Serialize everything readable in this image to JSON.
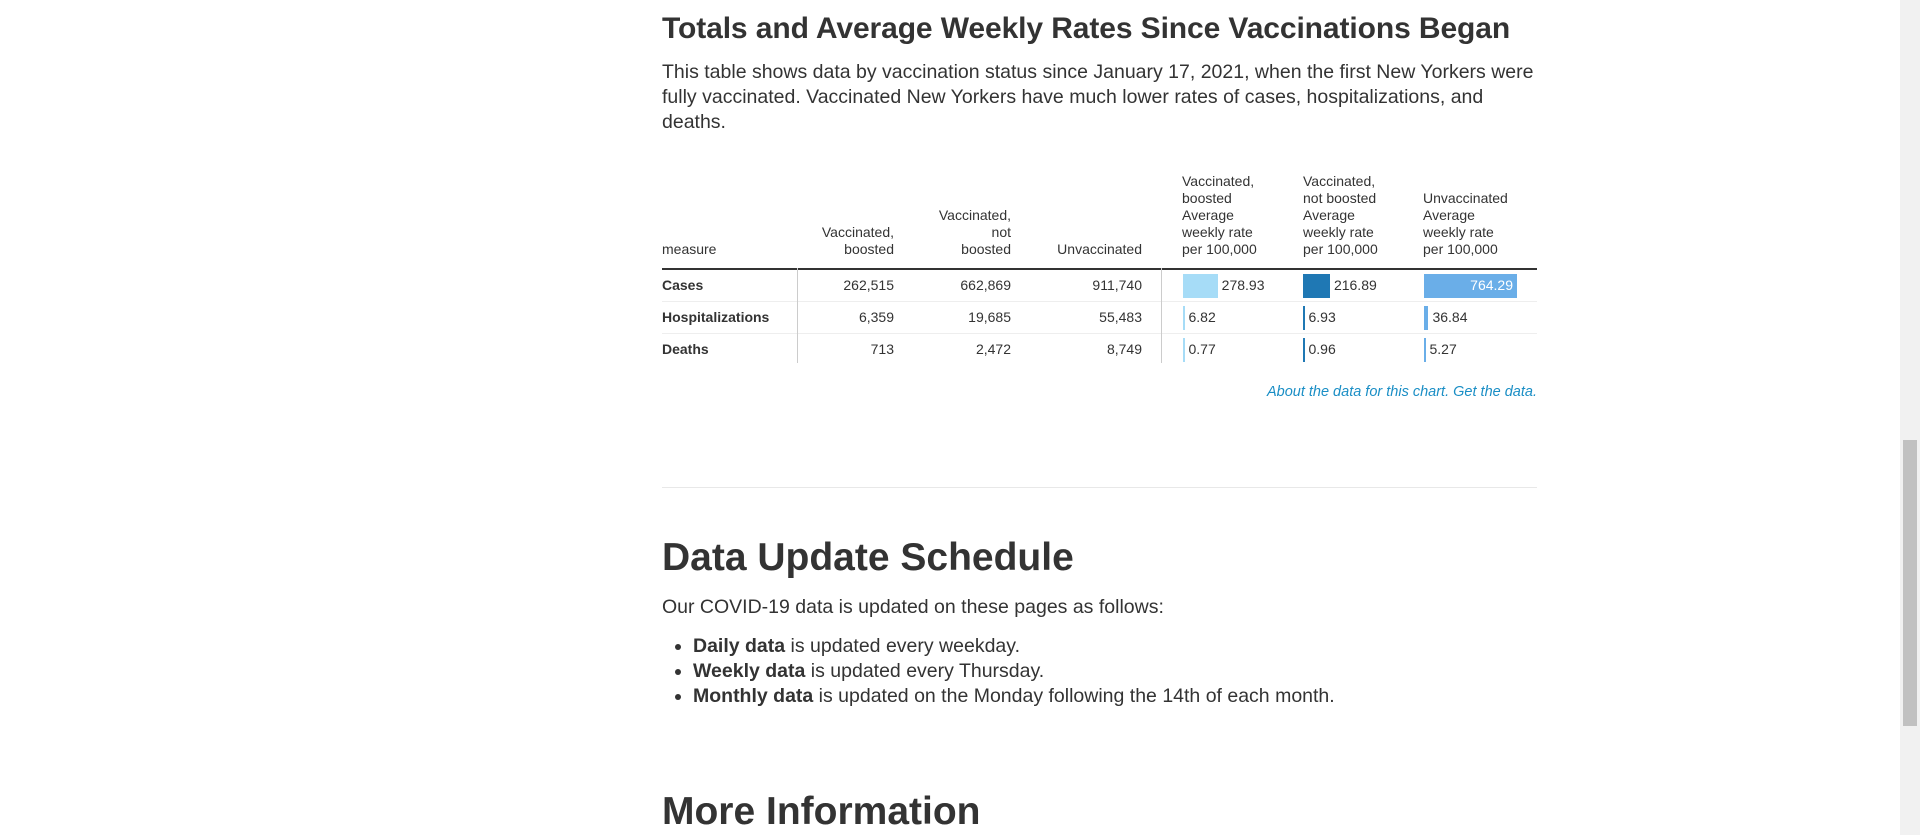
{
  "section": {
    "title": "Totals and Average Weekly Rates Since Vaccinations Began",
    "description": "This table shows data by vaccination status since January 17, 2021, when the first New Yorkers were fully vaccinated. Vaccinated New Yorkers have much lower rates of cases, hospitalizations, and deaths."
  },
  "table": {
    "headers": {
      "measure": "measure",
      "boosted": [
        "Vaccinated,",
        "boosted"
      ],
      "not_boosted": [
        "Vaccinated,",
        "not",
        "boosted"
      ],
      "unvaccinated": "Unvaccinated",
      "rate_boosted": [
        "Vaccinated,",
        "boosted",
        "Average",
        "weekly rate",
        "per 100,000"
      ],
      "rate_not_boosted": [
        "Vaccinated,",
        "not boosted",
        "Average",
        "weekly rate",
        "per 100,000"
      ],
      "rate_unvaccinated": [
        "Unvaccinated",
        "Average",
        "weekly rate",
        "per 100,000"
      ]
    },
    "rows": [
      {
        "measure": "Cases",
        "boosted": "262,515",
        "not_boosted": "662,869",
        "unvaccinated": "911,740",
        "rate_boosted": "278.93",
        "rate_not_boosted": "216.89",
        "rate_unvaccinated": "764.29"
      },
      {
        "measure": "Hospitalizations",
        "boosted": "6,359",
        "not_boosted": "19,685",
        "unvaccinated": "55,483",
        "rate_boosted": "6.82",
        "rate_not_boosted": "6.93",
        "rate_unvaccinated": "36.84"
      },
      {
        "measure": "Deaths",
        "boosted": "713",
        "not_boosted": "2,472",
        "unvaccinated": "8,749",
        "rate_boosted": "0.77",
        "rate_not_boosted": "0.96",
        "rate_unvaccinated": "5.27"
      }
    ],
    "colors": {
      "boosted": "#a6dcf7",
      "not_boosted": "#1f78b4",
      "unvaccinated": "#6aaee8"
    },
    "links": {
      "about": "About the data for this chart.",
      "get": "Get the data."
    }
  },
  "chart_data": {
    "type": "table",
    "columns": [
      "Vaccinated, boosted Average weekly rate per 100,000",
      "Vaccinated, not boosted Average weekly rate per 100,000",
      "Unvaccinated Average weekly rate per 100,000"
    ],
    "categories": [
      "Cases",
      "Hospitalizations",
      "Deaths"
    ],
    "series": [
      {
        "name": "Vaccinated, boosted",
        "values": [
          278.93,
          6.82,
          0.77
        ]
      },
      {
        "name": "Vaccinated, not boosted",
        "values": [
          216.89,
          6.93,
          0.96
        ]
      },
      {
        "name": "Unvaccinated",
        "values": [
          764.29,
          36.84,
          5.27
        ]
      }
    ]
  },
  "schedule": {
    "title": "Data Update Schedule",
    "intro": "Our COVID-19 data is updated on these pages as follows:",
    "items": [
      {
        "bold": "Daily data",
        "rest": " is updated every weekday."
      },
      {
        "bold": "Weekly data",
        "rest": " is updated every Thursday."
      },
      {
        "bold": "Monthly data",
        "rest": " is updated on the Monday following the 14th of each month."
      }
    ]
  },
  "more_info": {
    "title": "More Information"
  }
}
